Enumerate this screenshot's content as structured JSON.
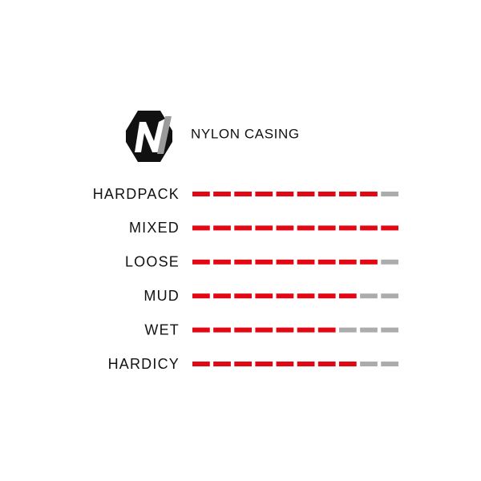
{
  "chart_data": {
    "type": "rating",
    "title": "NYLON CASING",
    "categories": [
      "HARDPACK",
      "MIXED",
      "LOOSE",
      "MUD",
      "WET",
      "HARDICY"
    ],
    "values": [
      9,
      10,
      9,
      8,
      7,
      8
    ],
    "xlim": [
      0,
      10
    ],
    "color": "#e30613",
    "empty_color": "#acacac"
  }
}
